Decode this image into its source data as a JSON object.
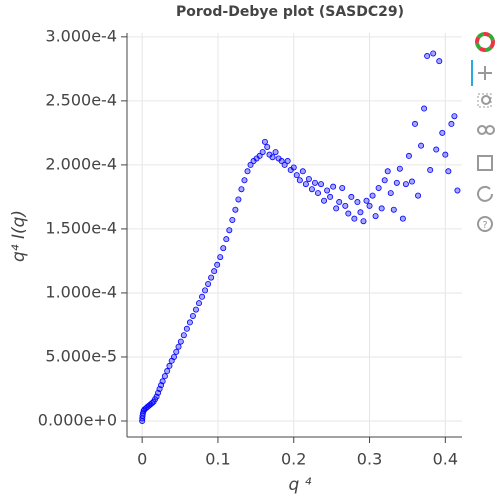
{
  "chart_data": {
    "type": "scatter",
    "title": "Porod-Debye plot (SASDC29)",
    "xlabel": "q ⁴",
    "ylabel": "q⁴ I(q)",
    "xlim": [
      -0.02,
      0.422
    ],
    "ylim": [
      -1.25e-05,
      0.000303
    ],
    "xticks": [
      0,
      0.1,
      0.2,
      0.3,
      0.4
    ],
    "yticks": [
      {
        "value": 0,
        "label": "0.000e+0"
      },
      {
        "value": 5e-05,
        "label": "5.000e-5"
      },
      {
        "value": 0.0001,
        "label": "1.000e-4"
      },
      {
        "value": 0.00015,
        "label": "1.500e-4"
      },
      {
        "value": 0.0002,
        "label": "2.000e-4"
      },
      {
        "value": 0.00025,
        "label": "2.500e-4"
      },
      {
        "value": 0.0003,
        "label": "3.000e-4"
      }
    ],
    "grid": true,
    "series": [
      {
        "color": "#0000ff",
        "x": [
          0,
          0.0002,
          0.0005,
          0.001,
          0.002,
          0.003,
          0.005,
          0.007,
          0.009,
          0.011,
          0.013,
          0.015,
          0.017,
          0.019,
          0.021,
          0.023,
          0.025,
          0.027,
          0.03,
          0.033,
          0.036,
          0.039,
          0.042,
          0.045,
          0.048,
          0.051,
          0.055,
          0.059,
          0.063,
          0.067,
          0.071,
          0.075,
          0.079,
          0.083,
          0.087,
          0.091,
          0.095,
          0.099,
          0.103,
          0.107,
          0.111,
          0.115,
          0.119,
          0.123,
          0.127,
          0.131,
          0.135,
          0.139,
          0.143,
          0.147,
          0.151,
          0.155,
          0.159,
          0.162,
          0.165,
          0.168,
          0.172,
          0.176,
          0.18,
          0.184,
          0.188,
          0.192,
          0.196,
          0.2,
          0.204,
          0.208,
          0.212,
          0.216,
          0.22,
          0.224,
          0.228,
          0.232,
          0.236,
          0.24,
          0.244,
          0.248,
          0.252,
          0.256,
          0.26,
          0.264,
          0.268,
          0.272,
          0.276,
          0.28,
          0.284,
          0.288,
          0.292,
          0.296,
          0.3,
          0.304,
          0.308,
          0.312,
          0.316,
          0.32,
          0.324,
          0.328,
          0.332,
          0.336,
          0.34,
          0.344,
          0.348,
          0.352,
          0.356,
          0.36,
          0.364,
          0.368,
          0.372,
          0.376,
          0.38,
          0.384,
          0.388,
          0.392,
          0.396,
          0.4,
          0.404,
          0.408,
          0.412,
          0.416
        ],
        "values": [
          0,
          2e-06,
          4e-06,
          6e-06,
          8e-06,
          9e-06,
          1e-05,
          1.1e-05,
          1.2e-05,
          1.3e-05,
          1.4e-05,
          1.5e-05,
          1.7e-05,
          1.9e-05,
          2.2e-05,
          2.5e-05,
          2.8e-05,
          3.1e-05,
          3.5e-05,
          3.9e-05,
          4.3e-05,
          4.7e-05,
          5e-05,
          5.4e-05,
          5.8e-05,
          6.2e-05,
          6.7e-05,
          7.2e-05,
          7.7e-05,
          8.2e-05,
          8.7e-05,
          9.2e-05,
          9.7e-05,
          0.000102,
          0.000107,
          0.000112,
          0.000117,
          0.000122,
          0.000128,
          0.000135,
          0.000142,
          0.000149,
          0.000157,
          0.000165,
          0.000173,
          0.000181,
          0.000188,
          0.000195,
          0.0002,
          0.000203,
          0.000205,
          0.000207,
          0.00021,
          0.000218,
          0.000214,
          0.000208,
          0.000206,
          0.00021,
          0.000205,
          0.000203,
          0.0002,
          0.000203,
          0.000196,
          0.000198,
          0.000192,
          0.000188,
          0.000195,
          0.000185,
          0.000189,
          0.000181,
          0.000186,
          0.000178,
          0.000185,
          0.000172,
          0.00018,
          0.000175,
          0.000183,
          0.000166,
          0.000171,
          0.000182,
          0.000168,
          0.000162,
          0.000175,
          0.000158,
          0.000171,
          0.000163,
          0.000156,
          0.000172,
          0.000168,
          0.000176,
          0.00016,
          0.000182,
          0.000166,
          0.000188,
          0.000195,
          0.000178,
          0.000165,
          0.000186,
          0.000197,
          0.000158,
          0.000185,
          0.000207,
          0.000187,
          0.000232,
          0.000176,
          0.000215,
          0.000244,
          0.000285,
          0.000196,
          0.000287,
          0.000212,
          0.000281,
          0.000225,
          0.000208,
          0.000195,
          0.000232,
          0.000238,
          0.00018
        ]
      }
    ]
  }
}
